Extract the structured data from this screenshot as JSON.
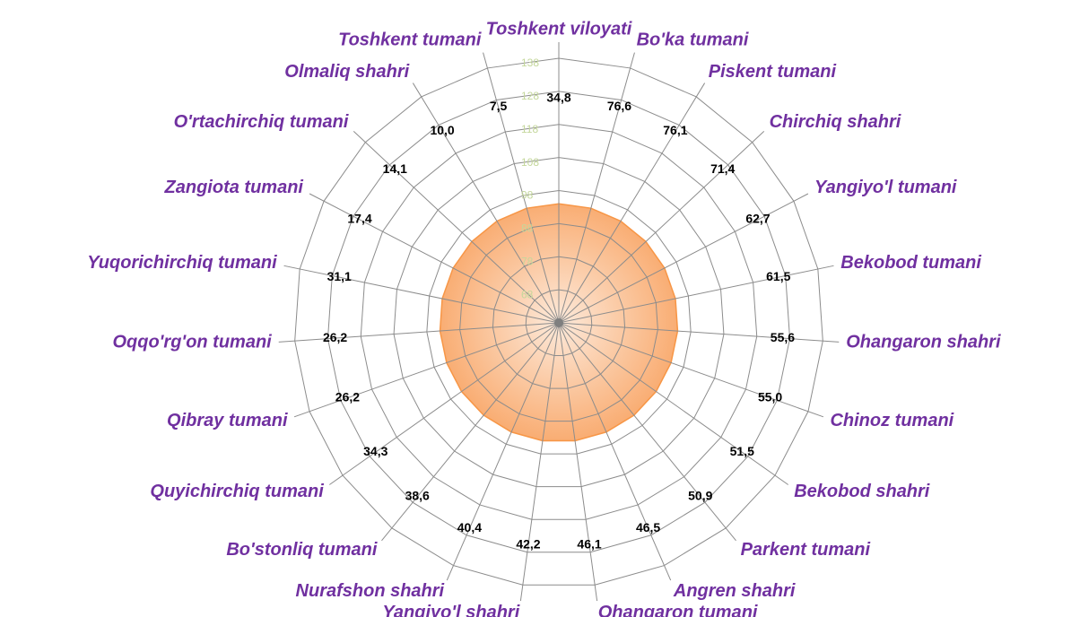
{
  "chart_data": {
    "type": "radar",
    "categories": [
      "Toshkent viloyati",
      "Bo'ka tumani",
      "Piskent tumani",
      "Chirchiq shahri",
      "Yangiyo'l tumani",
      "Bekobod tumani",
      "Ohangaron shahri",
      "Chinoz tumani",
      "Bekobod shahri",
      "Parkent tumani",
      "Angren shahri",
      "Ohangaron tumani",
      "Yangiyo'l shahri",
      "Nurafshon shahri",
      "Bo'stonliq tumani",
      "Quyichirchiq tumani",
      "Qibray tumani",
      "Oqqo'rg'on tumani",
      "Yuqorichirchiq tumani",
      "Zangiota tumani",
      "O'rtachirchiq tumani",
      "Olmaliq shahri",
      "Toshkent tumani"
    ],
    "series": [
      {
        "values": [
          34.8,
          76.6,
          76.1,
          71.4,
          62.7,
          61.5,
          55.6,
          55.0,
          51.5,
          50.9,
          46.5,
          46.1,
          42.2,
          40.4,
          38.6,
          34.3,
          26.2,
          26.2,
          31.1,
          17.4,
          14.1,
          10.0,
          7.5
        ],
        "value_labels": [
          "34,8",
          "76,6",
          "76,1",
          "71,4",
          "62,7",
          "61,5",
          "55,6",
          "55,0",
          "51,5",
          "50,9",
          "46,5",
          "46,1",
          "42,2",
          "40,4",
          "38,6",
          "34,3",
          "26,2",
          "26,2",
          "31,1",
          "17,4",
          "14,1",
          "10,0",
          "7,5"
        ],
        "color": "#000000"
      },
      {
        "values": [
          94,
          94,
          94,
          94,
          94,
          94,
          94,
          94,
          94,
          94,
          94,
          94,
          94,
          94,
          94,
          94,
          94,
          94,
          94,
          94,
          94,
          94,
          94
        ],
        "color": "#f79646"
      }
    ],
    "ylim": [
      58,
      138
    ],
    "yticks": [
      68,
      78,
      88,
      98,
      108,
      118,
      128,
      138
    ],
    "grid": true
  }
}
